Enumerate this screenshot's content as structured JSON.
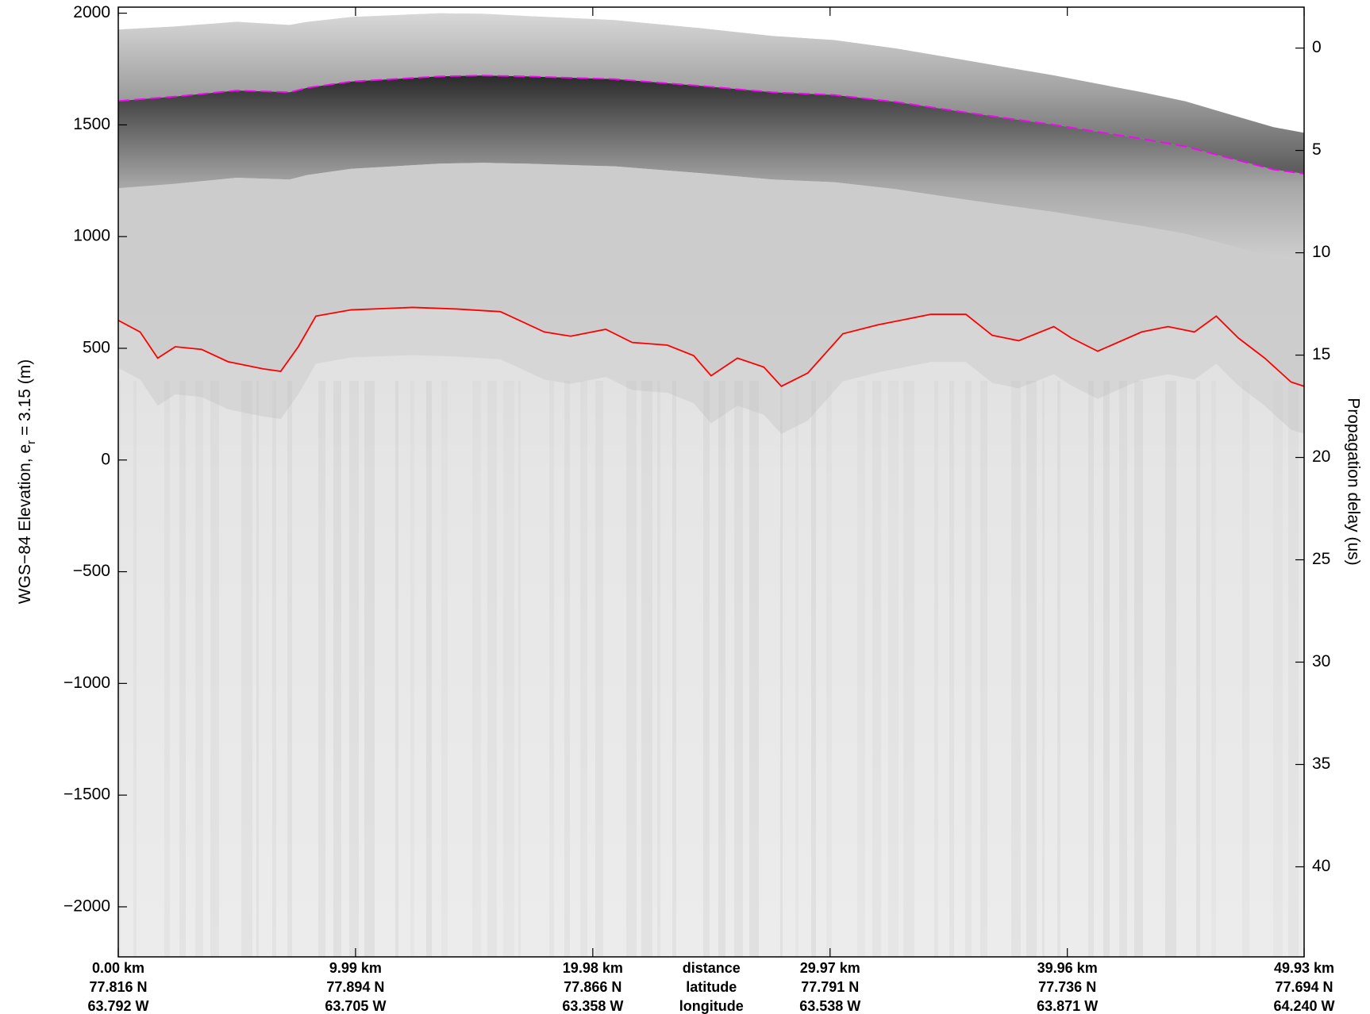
{
  "chart_data": {
    "type": "line",
    "y_label_parts": [
      "WGS−84 Elevation, e",
      "r",
      " = 3.15 (m)"
    ],
    "y2_label": "Propagation delay (us)",
    "x_row_labels": [
      "distance",
      "latitude",
      "longitude"
    ],
    "xlim": [
      0,
      49.93
    ],
    "xticks": [
      {
        "value": 0,
        "label": "0.00 km"
      },
      {
        "value": 9.99,
        "label": "9.99 km"
      },
      {
        "value": 19.98,
        "label": "19.98 km"
      },
      {
        "value": 29.97,
        "label": "29.97 km"
      },
      {
        "value": 39.96,
        "label": "39.96 km"
      },
      {
        "value": 49.93,
        "label": "49.93 km"
      }
    ],
    "latitudes": [
      "77.816 N",
      "77.894 N",
      "77.866 N",
      "77.791 N",
      "77.736 N",
      "77.694 N"
    ],
    "longitudes": [
      "63.792 W",
      "63.705 W",
      "63.358 W",
      "63.538 W",
      "63.871 W",
      "64.240 W"
    ],
    "ylim": [
      -2224,
      2027
    ],
    "yticks": [
      {
        "value": -2000,
        "label": "−2000"
      },
      {
        "value": -1500,
        "label": "−1500"
      },
      {
        "value": -1000,
        "label": "−1000"
      },
      {
        "value": -500,
        "label": "−500"
      },
      0,
      500,
      1000,
      1500,
      2000
    ],
    "y2lim": [
      44.4,
      -2.0
    ],
    "y2ticks": [
      0,
      5,
      10,
      15,
      20,
      25,
      30,
      35,
      40
    ],
    "series": [
      {
        "color": "#ff00ff",
        "dash": true,
        "x": [
          0,
          2.4,
          4.99,
          7.21,
          7.95,
          9.8,
          13.5,
          15.35,
          17.2,
          20.9,
          24.59,
          27.55,
          30.14,
          32.73,
          35.69,
          37.54,
          39.39,
          41.24,
          43.09,
          44.94,
          46.79,
          48.64,
          49.93
        ],
        "values": [
          1607,
          1627,
          1654,
          1646,
          1666,
          1694,
          1717,
          1721,
          1717,
          1705,
          1674,
          1646,
          1634,
          1603,
          1556,
          1528,
          1501,
          1469,
          1438,
          1403,
          1351,
          1300,
          1281
        ]
      },
      {
        "color": "#ff0000",
        "dash": false,
        "x": [
          0,
          0.92,
          1.66,
          2.4,
          3.51,
          4.62,
          6.1,
          6.84,
          7.58,
          8.32,
          9.8,
          12.39,
          14.24,
          16.09,
          17.94,
          19.05,
          20.53,
          21.64,
          23.12,
          24.23,
          24.96,
          26.07,
          27.18,
          27.92,
          29.03,
          30.51,
          31.99,
          34.21,
          35.69,
          36.8,
          37.91,
          39.39,
          40.13,
          41.24,
          43.09,
          44.2,
          45.31,
          46.23,
          47.16,
          48.27,
          49.38,
          49.93
        ],
        "values": [
          625,
          573,
          456,
          507,
          495,
          440,
          408,
          397,
          507,
          644,
          672,
          683,
          676,
          664,
          573,
          554,
          585,
          526,
          514,
          467,
          377,
          456,
          416,
          330,
          389,
          565,
          605,
          652,
          652,
          558,
          534,
          597,
          546,
          487,
          573,
          597,
          573,
          644,
          546,
          456,
          349,
          330
        ]
      }
    ]
  }
}
